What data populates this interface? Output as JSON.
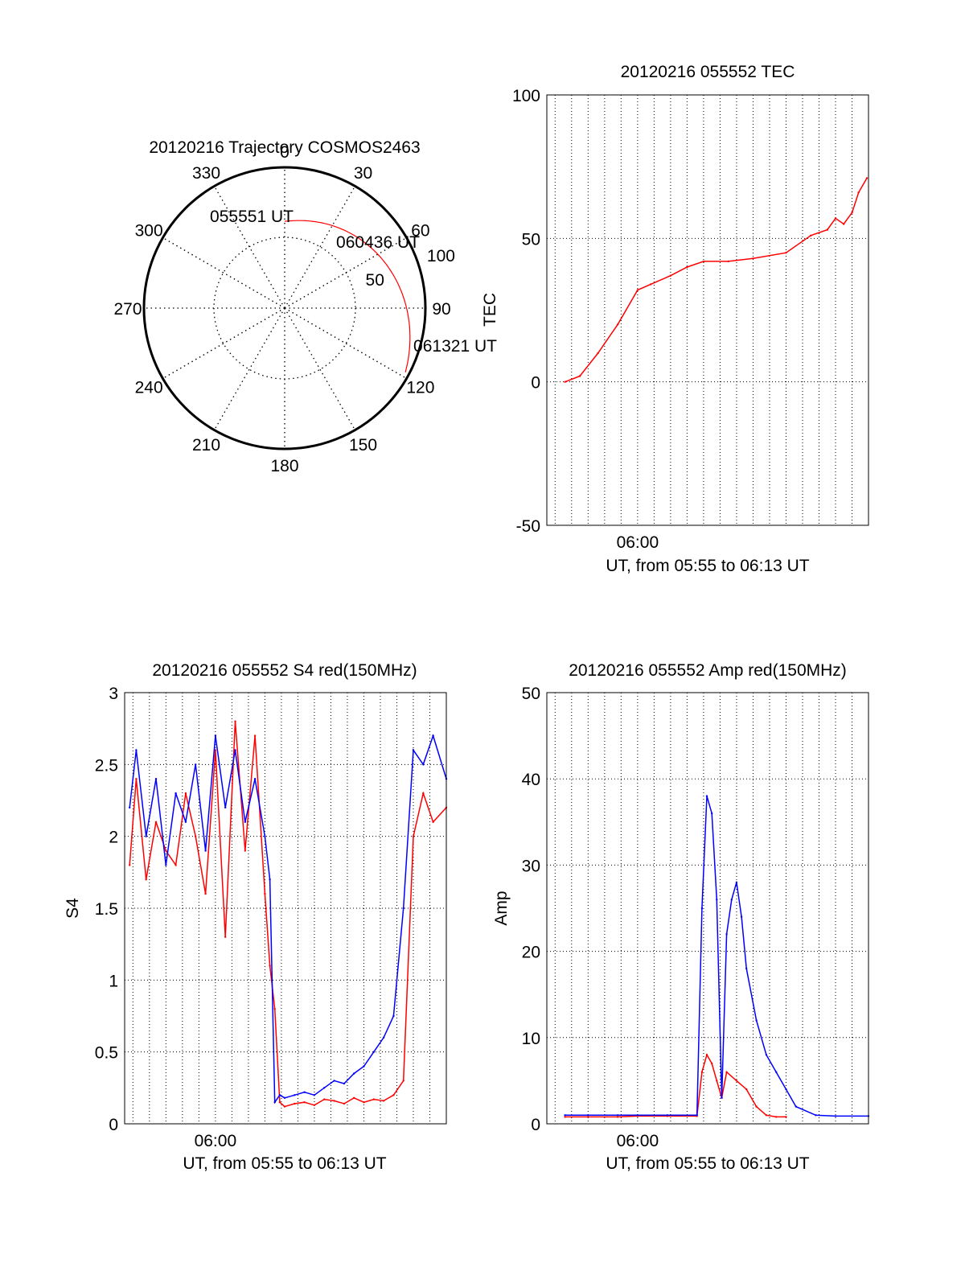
{
  "chart_data": [
    {
      "id": "polar",
      "type": "scatter",
      "subtype": "polar-trajectory",
      "title": "20120216 Trajectory COSMOS2463",
      "azimuth_ticks": [
        "0",
        "30",
        "60",
        "90",
        "120",
        "150",
        "180",
        "210",
        "240",
        "270",
        "300",
        "330"
      ],
      "elevation_ring_labels": [
        "50",
        "100"
      ],
      "elevation_rings": [
        50,
        100
      ],
      "grid": true,
      "trajectory_color": "#ff0000",
      "trajectory": [
        {
          "az": 0,
          "el": 5
        },
        {
          "az": 25,
          "el": 16
        },
        {
          "az": 45,
          "el": 33
        },
        {
          "az": 65,
          "el": 58
        },
        {
          "az": 83,
          "el": 86
        },
        {
          "az": 94,
          "el": 100
        },
        {
          "az": 101,
          "el": 106
        },
        {
          "az": 108,
          "el": 111
        },
        {
          "az": 115,
          "el": 112
        }
      ],
      "annotations": [
        {
          "text": "055551 UT",
          "az": 8,
          "el": 10
        },
        {
          "text": "060436 UT",
          "az": 55,
          "el": 45
        },
        {
          "text": "061321 UT",
          "az": 110,
          "el": 105
        }
      ]
    },
    {
      "id": "tec",
      "type": "line",
      "title": "20120216 055552 TEC",
      "xlabel": "UT, from 05:55 to 06:13 UT",
      "ylabel": "TEC",
      "xlim": [
        5.9083,
        6.2333
      ],
      "ylim": [
        -50,
        100
      ],
      "yticks": [
        "-50",
        "0",
        "50",
        "100"
      ],
      "xtick_labels": [
        {
          "x": 6.0,
          "label": "06:00"
        }
      ],
      "grid": true,
      "series": [
        {
          "color": "#ff0000",
          "x": [
            5.9267,
            5.9417,
            5.96,
            5.98,
            6.0,
            6.0133,
            6.0333,
            6.05,
            6.0667,
            6.0917,
            6.1167,
            6.15,
            6.175,
            6.1917,
            6.2,
            6.2083,
            6.2167,
            6.2233,
            6.2317
          ],
          "y": [
            0,
            2,
            10,
            20,
            32,
            34,
            37,
            40,
            42,
            42,
            43,
            45,
            51,
            53,
            57,
            55,
            59,
            66,
            71
          ]
        }
      ]
    },
    {
      "id": "s4",
      "type": "line",
      "title": "20120216 055552 S4 red(150MHz)",
      "xlabel": "UT, from 05:55 to 06:13 UT",
      "ylabel": "S4",
      "xlim": [
        5.9083,
        6.2333
      ],
      "ylim": [
        0,
        3
      ],
      "yticks": [
        "0",
        "0.5",
        "1",
        "1.5",
        "2",
        "2.5",
        "3"
      ],
      "xtick_labels": [
        {
          "x": 6.0,
          "label": "06:00"
        }
      ],
      "grid": true,
      "series": [
        {
          "color": "#ff0000",
          "x": [
            5.9133,
            5.92,
            5.93,
            5.94,
            5.95,
            5.96,
            5.97,
            5.98,
            5.99,
            6.0,
            6.01,
            6.02,
            6.03,
            6.04,
            6.05,
            6.055,
            6.06,
            6.065,
            6.07,
            6.08,
            6.09,
            6.1,
            6.11,
            6.12,
            6.13,
            6.14,
            6.15,
            6.16,
            6.17,
            6.18,
            6.19,
            6.2,
            6.21,
            6.22,
            6.2333
          ],
          "y": [
            1.8,
            2.4,
            1.7,
            2.1,
            1.9,
            1.8,
            2.3,
            2.0,
            1.6,
            2.6,
            1.3,
            2.8,
            1.9,
            2.7,
            1.6,
            1.1,
            0.8,
            0.15,
            0.12,
            0.14,
            0.15,
            0.13,
            0.17,
            0.16,
            0.14,
            0.18,
            0.15,
            0.17,
            0.16,
            0.2,
            0.3,
            2.0,
            2.3,
            2.1,
            2.2
          ]
        },
        {
          "color": "#0000ff",
          "x": [
            5.9133,
            5.92,
            5.93,
            5.94,
            5.95,
            5.96,
            5.97,
            5.98,
            5.99,
            6.0,
            6.01,
            6.02,
            6.03,
            6.04,
            6.05,
            6.055,
            6.06,
            6.065,
            6.07,
            6.08,
            6.09,
            6.1,
            6.11,
            6.12,
            6.13,
            6.14,
            6.15,
            6.16,
            6.17,
            6.18,
            6.19,
            6.2,
            6.21,
            6.22,
            6.2333
          ],
          "y": [
            2.2,
            2.6,
            2.0,
            2.4,
            1.8,
            2.3,
            2.1,
            2.5,
            1.9,
            2.7,
            2.2,
            2.6,
            2.1,
            2.4,
            2.0,
            1.7,
            0.15,
            0.2,
            0.18,
            0.2,
            0.22,
            0.2,
            0.25,
            0.3,
            0.28,
            0.35,
            0.4,
            0.5,
            0.6,
            0.75,
            1.5,
            2.6,
            2.5,
            2.7,
            2.4
          ]
        }
      ]
    },
    {
      "id": "amp",
      "type": "line",
      "title": "20120216 055552 Amp red(150MHz)",
      "xlabel": "UT, from 05:55 to 06:13 UT",
      "ylabel": "Amp",
      "xlim": [
        5.9083,
        6.2333
      ],
      "ylim": [
        0,
        50
      ],
      "yticks": [
        "0",
        "10",
        "20",
        "30",
        "40",
        "50"
      ],
      "xtick_labels": [
        {
          "x": 6.0,
          "label": "06:00"
        }
      ],
      "grid": true,
      "series": [
        {
          "color": "#ff0000",
          "x": [
            5.9267,
            5.95,
            5.98,
            6.0,
            6.03,
            6.06,
            6.065,
            6.07,
            6.075,
            6.08,
            6.085,
            6.09,
            6.1,
            6.11,
            6.12,
            6.13,
            6.14,
            6.15
          ],
          "y": [
            0.8,
            0.8,
            0.8,
            0.9,
            0.9,
            0.9,
            6,
            8,
            7,
            5,
            3,
            6,
            5,
            4,
            2,
            1.0,
            0.8,
            0.8
          ]
        },
        {
          "color": "#0000ff",
          "x": [
            5.9267,
            5.95,
            5.98,
            6.0,
            6.03,
            6.06,
            6.065,
            6.07,
            6.075,
            6.08,
            6.085,
            6.09,
            6.095,
            6.1,
            6.105,
            6.11,
            6.12,
            6.13,
            6.14,
            6.15,
            6.16,
            6.18,
            6.2,
            6.2333
          ],
          "y": [
            1.0,
            1.0,
            1.0,
            1.0,
            1.0,
            1.0,
            25,
            38,
            36,
            26,
            3,
            22,
            26,
            28,
            24,
            18,
            12,
            8,
            6,
            4,
            2,
            1.0,
            0.9,
            0.9
          ]
        }
      ]
    }
  ]
}
